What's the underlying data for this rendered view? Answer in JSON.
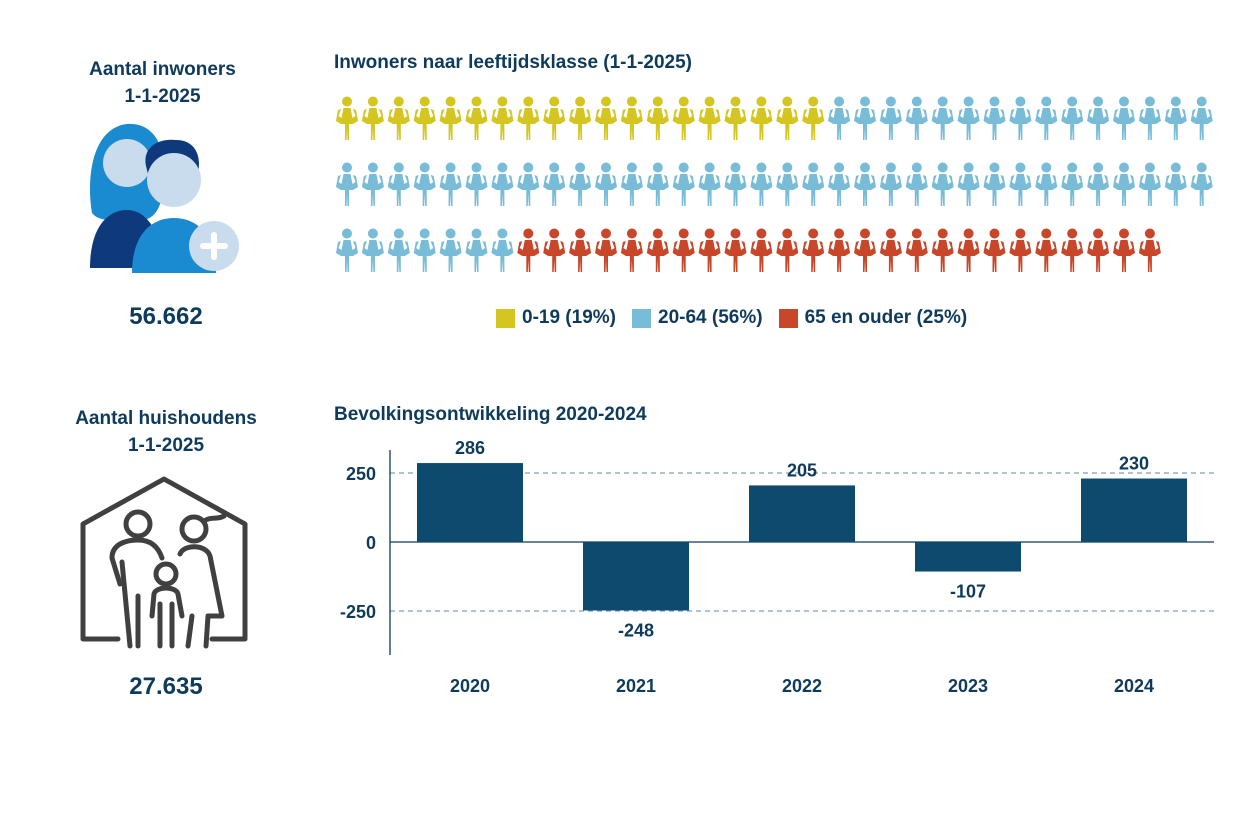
{
  "inhabitants": {
    "title_line1": "Aantal inwoners",
    "title_line2": "1-1-2025",
    "value": "56.662",
    "icon": "people-add-icon"
  },
  "households": {
    "title_line1": "Aantal huishoudens",
    "title_line2": "1-1-2025",
    "value": "27.635",
    "icon": "family-house-icon"
  },
  "colors": {
    "young": "#d4c520",
    "adult": "#78bcd8",
    "senior": "#c8462a",
    "bar": "#0e4a6e",
    "text": "#0e3a5c"
  },
  "chart_data": [
    {
      "type": "pictogram",
      "title": "Inwoners naar leeftijdsklasse (1-1-2025)",
      "rows": [
        [
          "young",
          19,
          "adult",
          15
        ],
        [
          "adult",
          34
        ],
        [
          "adult",
          7,
          "senior",
          25
        ]
      ],
      "series": [
        {
          "key": "young",
          "name": "0-19 (19%)",
          "value": 19
        },
        {
          "key": "adult",
          "name": "20-64 (56%)",
          "value": 56
        },
        {
          "key": "senior",
          "name": "65 en ouder (25%)",
          "value": 25
        }
      ],
      "legend_position": "bottom"
    },
    {
      "type": "bar",
      "title": "Bevolkingsontwikkeling 2020-2024",
      "categories": [
        "2020",
        "2021",
        "2022",
        "2023",
        "2024"
      ],
      "values": [
        286,
        -248,
        205,
        -107,
        230
      ],
      "data_labels": [
        "286",
        "-248",
        "205",
        "-107",
        "230"
      ],
      "yticks": [
        250,
        0,
        -250
      ],
      "ytick_labels": [
        "250",
        "0",
        "-250"
      ],
      "ylim": [
        -390,
        300
      ],
      "grid": "dashed at ±250"
    }
  ]
}
